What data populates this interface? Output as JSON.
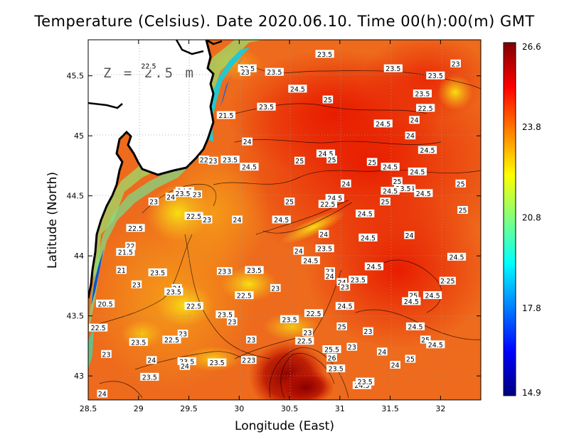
{
  "title": "Temperature (Celsius). Date 2020.06.10. Time 00(h):00(m) GMT",
  "depth_label": "Z = 2.5 m",
  "xlabel": "Longitude (East)",
  "ylabel": "Latitude (North)",
  "x_ticks": [
    "28.5",
    "29",
    "29.5",
    "30",
    "30.5",
    "31",
    "31.5",
    "32"
  ],
  "y_ticks": [
    "43",
    "43.5",
    "44",
    "44.5",
    "45",
    "45.5"
  ],
  "colorbar": {
    "ticks": [
      "26.6",
      "23.8",
      "20.8",
      "17.8",
      "14.9"
    ],
    "min": 14.9,
    "max": 26.6,
    "colors": [
      "#00007f",
      "#0000ff",
      "#007fff",
      "#00ffff",
      "#7fff7f",
      "#ffff00",
      "#ff7f00",
      "#ff0000",
      "#7f0000"
    ]
  },
  "chart_data": {
    "type": "heatmap",
    "variable": "Temperature (Celsius)",
    "xlim": [
      28.5,
      32.4
    ],
    "ylim": [
      42.8,
      45.8
    ],
    "range": [
      14.9,
      26.6
    ],
    "grid": true,
    "contour_labels": [
      {
        "lon": 29.1,
        "lat": 45.58,
        "text": "22.5"
      },
      {
        "lon": 30.08,
        "lat": 45.56,
        "text": "22.5"
      },
      {
        "lon": 30.06,
        "lat": 45.53,
        "text": "23"
      },
      {
        "lon": 30.35,
        "lat": 45.53,
        "text": "23.5"
      },
      {
        "lon": 30.85,
        "lat": 45.68,
        "text": "23.5"
      },
      {
        "lon": 31.53,
        "lat": 45.56,
        "text": "23.5"
      },
      {
        "lon": 31.95,
        "lat": 45.5,
        "text": "23.5"
      },
      {
        "lon": 32.15,
        "lat": 45.6,
        "text": "23"
      },
      {
        "lon": 30.58,
        "lat": 45.39,
        "text": "24.5"
      },
      {
        "lon": 30.88,
        "lat": 45.3,
        "text": "25"
      },
      {
        "lon": 31.82,
        "lat": 45.35,
        "text": "23.5"
      },
      {
        "lon": 31.85,
        "lat": 45.23,
        "text": "22.5"
      },
      {
        "lon": 29.87,
        "lat": 45.17,
        "text": "21.5"
      },
      {
        "lon": 30.27,
        "lat": 45.24,
        "text": "23.5"
      },
      {
        "lon": 30.08,
        "lat": 44.95,
        "text": "24"
      },
      {
        "lon": 31.43,
        "lat": 45.1,
        "text": "24.5"
      },
      {
        "lon": 31.74,
        "lat": 45.13,
        "text": "24"
      },
      {
        "lon": 31.7,
        "lat": 45.0,
        "text": "24"
      },
      {
        "lon": 31.87,
        "lat": 44.88,
        "text": "24.5"
      },
      {
        "lon": 29.74,
        "lat": 44.79,
        "text": "23"
      },
      {
        "lon": 29.65,
        "lat": 44.8,
        "text": "22"
      },
      {
        "lon": 29.91,
        "lat": 44.8,
        "text": "23.5"
      },
      {
        "lon": 30.6,
        "lat": 44.79,
        "text": "25"
      },
      {
        "lon": 30.86,
        "lat": 44.85,
        "text": "24.5"
      },
      {
        "lon": 30.92,
        "lat": 44.8,
        "text": "25"
      },
      {
        "lon": 31.32,
        "lat": 44.78,
        "text": "25"
      },
      {
        "lon": 31.5,
        "lat": 44.74,
        "text": "24.5"
      },
      {
        "lon": 31.77,
        "lat": 44.7,
        "text": "24.5"
      },
      {
        "lon": 30.1,
        "lat": 44.74,
        "text": "24.5"
      },
      {
        "lon": 29.46,
        "lat": 44.54,
        "text": "24.5"
      },
      {
        "lon": 29.44,
        "lat": 44.52,
        "text": "23.5"
      },
      {
        "lon": 29.58,
        "lat": 44.51,
        "text": "23"
      },
      {
        "lon": 29.32,
        "lat": 44.49,
        "text": "24"
      },
      {
        "lon": 31.06,
        "lat": 44.6,
        "text": "24"
      },
      {
        "lon": 31.57,
        "lat": 44.62,
        "text": "25"
      },
      {
        "lon": 31.7,
        "lat": 44.56,
        "text": "24"
      },
      {
        "lon": 31.63,
        "lat": 44.56,
        "text": "23.5"
      },
      {
        "lon": 32.2,
        "lat": 44.6,
        "text": "25"
      },
      {
        "lon": 31.5,
        "lat": 44.54,
        "text": "24.5"
      },
      {
        "lon": 31.83,
        "lat": 44.52,
        "text": "24.5"
      },
      {
        "lon": 29.15,
        "lat": 44.45,
        "text": "23"
      },
      {
        "lon": 30.5,
        "lat": 44.45,
        "text": "25"
      },
      {
        "lon": 30.95,
        "lat": 44.48,
        "text": "24.5"
      },
      {
        "lon": 30.88,
        "lat": 44.43,
        "text": "22.5"
      },
      {
        "lon": 31.45,
        "lat": 44.45,
        "text": "25"
      },
      {
        "lon": 32.22,
        "lat": 44.38,
        "text": "25"
      },
      {
        "lon": 29.55,
        "lat": 44.33,
        "text": "22.5"
      },
      {
        "lon": 29.68,
        "lat": 44.3,
        "text": "23"
      },
      {
        "lon": 29.98,
        "lat": 44.3,
        "text": "24"
      },
      {
        "lon": 30.42,
        "lat": 44.3,
        "text": "24.5"
      },
      {
        "lon": 31.25,
        "lat": 44.35,
        "text": "24.5"
      },
      {
        "lon": 28.97,
        "lat": 44.23,
        "text": "22.5"
      },
      {
        "lon": 30.84,
        "lat": 44.18,
        "text": "24"
      },
      {
        "lon": 31.28,
        "lat": 44.15,
        "text": "24.5"
      },
      {
        "lon": 31.69,
        "lat": 44.17,
        "text": "24"
      },
      {
        "lon": 28.92,
        "lat": 44.08,
        "text": "22"
      },
      {
        "lon": 28.87,
        "lat": 44.03,
        "text": "21.5"
      },
      {
        "lon": 30.85,
        "lat": 44.06,
        "text": "23.5"
      },
      {
        "lon": 30.59,
        "lat": 44.04,
        "text": "24"
      },
      {
        "lon": 30.71,
        "lat": 43.96,
        "text": "24.5"
      },
      {
        "lon": 32.16,
        "lat": 43.99,
        "text": "24.5"
      },
      {
        "lon": 28.83,
        "lat": 43.88,
        "text": "21"
      },
      {
        "lon": 29.19,
        "lat": 43.86,
        "text": "23.5"
      },
      {
        "lon": 29.88,
        "lat": 43.87,
        "text": "23"
      },
      {
        "lon": 29.83,
        "lat": 43.87,
        "text": "23"
      },
      {
        "lon": 30.15,
        "lat": 43.88,
        "text": "23.5"
      },
      {
        "lon": 30.9,
        "lat": 43.87,
        "text": "23"
      },
      {
        "lon": 30.9,
        "lat": 43.83,
        "text": "24"
      },
      {
        "lon": 31.02,
        "lat": 43.78,
        "text": "24"
      },
      {
        "lon": 31.18,
        "lat": 43.8,
        "text": "23.5"
      },
      {
        "lon": 31.34,
        "lat": 43.91,
        "text": "24.5"
      },
      {
        "lon": 28.98,
        "lat": 43.76,
        "text": "23"
      },
      {
        "lon": 29.38,
        "lat": 43.73,
        "text": "24"
      },
      {
        "lon": 29.35,
        "lat": 43.7,
        "text": "23.5"
      },
      {
        "lon": 30.05,
        "lat": 43.67,
        "text": "22.5"
      },
      {
        "lon": 30.36,
        "lat": 43.73,
        "text": "23"
      },
      {
        "lon": 31.05,
        "lat": 43.74,
        "text": "23"
      },
      {
        "lon": 31.73,
        "lat": 43.67,
        "text": "25"
      },
      {
        "lon": 31.71,
        "lat": 43.62,
        "text": "24.5"
      },
      {
        "lon": 31.92,
        "lat": 43.67,
        "text": "24.5"
      },
      {
        "lon": 32.04,
        "lat": 43.79,
        "text": "24"
      },
      {
        "lon": 32.1,
        "lat": 43.79,
        "text": "25"
      },
      {
        "lon": 28.67,
        "lat": 43.6,
        "text": "20.5"
      },
      {
        "lon": 29.55,
        "lat": 43.58,
        "text": "22.5"
      },
      {
        "lon": 30.74,
        "lat": 43.52,
        "text": "22.5"
      },
      {
        "lon": 31.05,
        "lat": 43.58,
        "text": "24.5"
      },
      {
        "lon": 29.86,
        "lat": 43.51,
        "text": "23.5"
      },
      {
        "lon": 29.93,
        "lat": 43.45,
        "text": "23"
      },
      {
        "lon": 30.5,
        "lat": 43.47,
        "text": "23.5"
      },
      {
        "lon": 28.6,
        "lat": 43.4,
        "text": "22.5"
      },
      {
        "lon": 29.44,
        "lat": 43.35,
        "text": "23"
      },
      {
        "lon": 30.68,
        "lat": 43.36,
        "text": "23"
      },
      {
        "lon": 31.02,
        "lat": 43.41,
        "text": "25"
      },
      {
        "lon": 31.28,
        "lat": 43.37,
        "text": "23"
      },
      {
        "lon": 31.75,
        "lat": 43.41,
        "text": "24.5"
      },
      {
        "lon": 29.0,
        "lat": 43.28,
        "text": "23.5"
      },
      {
        "lon": 29.33,
        "lat": 43.3,
        "text": "22.5"
      },
      {
        "lon": 30.12,
        "lat": 43.3,
        "text": "23"
      },
      {
        "lon": 30.65,
        "lat": 43.29,
        "text": "22.5"
      },
      {
        "lon": 31.85,
        "lat": 43.3,
        "text": "25"
      },
      {
        "lon": 31.95,
        "lat": 43.26,
        "text": "24.5"
      },
      {
        "lon": 28.68,
        "lat": 43.18,
        "text": "23"
      },
      {
        "lon": 30.92,
        "lat": 43.22,
        "text": "25.5"
      },
      {
        "lon": 31.12,
        "lat": 43.24,
        "text": "23"
      },
      {
        "lon": 31.42,
        "lat": 43.2,
        "text": "24"
      },
      {
        "lon": 30.92,
        "lat": 43.15,
        "text": "26"
      },
      {
        "lon": 31.7,
        "lat": 43.14,
        "text": "25"
      },
      {
        "lon": 29.13,
        "lat": 43.13,
        "text": "24"
      },
      {
        "lon": 29.48,
        "lat": 43.12,
        "text": "23.5"
      },
      {
        "lon": 29.46,
        "lat": 43.08,
        "text": "24"
      },
      {
        "lon": 29.78,
        "lat": 43.11,
        "text": "23.5"
      },
      {
        "lon": 30.07,
        "lat": 43.13,
        "text": "23"
      },
      {
        "lon": 30.12,
        "lat": 43.13,
        "text": "23"
      },
      {
        "lon": 30.96,
        "lat": 43.06,
        "text": "23.5"
      },
      {
        "lon": 31.55,
        "lat": 43.09,
        "text": "24"
      },
      {
        "lon": 29.11,
        "lat": 42.99,
        "text": "23.5"
      },
      {
        "lon": 31.22,
        "lat": 42.92,
        "text": "24.5"
      },
      {
        "lon": 31.25,
        "lat": 42.95,
        "text": "23.5"
      },
      {
        "lon": 28.64,
        "lat": 42.85,
        "text": "24"
      }
    ]
  }
}
